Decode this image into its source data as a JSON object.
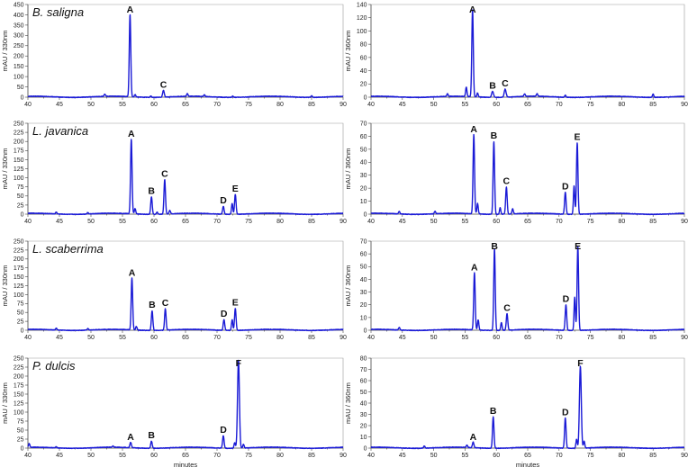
{
  "style": {
    "line_color": "#1a1ad6"
  },
  "chart_data": [
    {
      "type": "line",
      "title": "B. saligna",
      "xlabel": "",
      "ylabel": "mAU / 330nm",
      "xlim": [
        40,
        90
      ],
      "xticks": [
        40,
        45,
        50,
        55,
        60,
        65,
        70,
        75,
        80,
        85,
        90
      ],
      "ylim": [
        0,
        450
      ],
      "yticks": [
        0,
        50,
        100,
        150,
        200,
        250,
        300,
        350,
        400,
        450
      ],
      "peaks": [
        {
          "label": "A",
          "x": 56.2,
          "y": 400,
          "w": 0.2
        },
        {
          "label": "C",
          "x": 61.5,
          "y": 33,
          "w": 0.22
        }
      ],
      "minor_peaks": [
        {
          "x": 52.2,
          "y": 10
        },
        {
          "x": 57.0,
          "y": 12
        },
        {
          "x": 59.5,
          "y": 6
        },
        {
          "x": 65.3,
          "y": 13
        },
        {
          "x": 68.0,
          "y": 8
        },
        {
          "x": 72.5,
          "y": 6
        },
        {
          "x": 85.0,
          "y": 8
        }
      ]
    },
    {
      "type": "line",
      "title": "",
      "xlabel": "",
      "ylabel": "mAU / 360nm",
      "xlim": [
        40,
        90
      ],
      "xticks": [
        40,
        45,
        50,
        55,
        60,
        65,
        70,
        75,
        80,
        85,
        90
      ],
      "ylim": [
        0,
        140
      ],
      "yticks": [
        0,
        20,
        40,
        60,
        80,
        100,
        120,
        140
      ],
      "peaks": [
        {
          "label": "A",
          "x": 56.2,
          "y": 132,
          "w": 0.2
        },
        {
          "label": "B",
          "x": 59.4,
          "y": 9,
          "w": 0.25
        },
        {
          "label": "C",
          "x": 61.4,
          "y": 12,
          "w": 0.25
        }
      ],
      "minor_peaks": [
        {
          "x": 55.2,
          "y": 14
        },
        {
          "x": 57.0,
          "y": 6
        },
        {
          "x": 52.2,
          "y": 4
        },
        {
          "x": 64.5,
          "y": 4
        },
        {
          "x": 66.5,
          "y": 4
        },
        {
          "x": 71.0,
          "y": 3
        },
        {
          "x": 85.0,
          "y": 5
        }
      ]
    },
    {
      "type": "line",
      "title": "L. javanica",
      "xlabel": "",
      "ylabel": "mAU / 330nm",
      "xlim": [
        40,
        90
      ],
      "xticks": [
        40,
        45,
        50,
        55,
        60,
        65,
        70,
        75,
        80,
        85,
        90
      ],
      "ylim": [
        0,
        250
      ],
      "yticks": [
        0,
        25,
        50,
        75,
        100,
        125,
        150,
        175,
        200,
        225,
        250
      ],
      "peaks": [
        {
          "label": "A",
          "x": 56.4,
          "y": 205,
          "w": 0.2
        },
        {
          "label": "B",
          "x": 59.6,
          "y": 48,
          "w": 0.2
        },
        {
          "label": "C",
          "x": 61.7,
          "y": 95,
          "w": 0.2
        },
        {
          "label": "D",
          "x": 71.0,
          "y": 22,
          "w": 0.2
        },
        {
          "label": "E",
          "x": 72.9,
          "y": 55,
          "w": 0.2
        }
      ],
      "minor_peaks": [
        {
          "x": 72.4,
          "y": 30
        },
        {
          "x": 57.0,
          "y": 15
        },
        {
          "x": 60.5,
          "y": 6
        },
        {
          "x": 62.5,
          "y": 10
        },
        {
          "x": 44.5,
          "y": 5
        },
        {
          "x": 49.5,
          "y": 4
        }
      ]
    },
    {
      "type": "line",
      "title": "",
      "xlabel": "",
      "ylabel": "mAU / 360nm",
      "xlim": [
        40,
        90
      ],
      "xticks": [
        40,
        45,
        50,
        55,
        60,
        65,
        70,
        75,
        80,
        85,
        90
      ],
      "ylim": [
        0,
        70
      ],
      "yticks": [
        0,
        10,
        20,
        30,
        40,
        50,
        60,
        70
      ],
      "peaks": [
        {
          "label": "A",
          "x": 56.4,
          "y": 61,
          "w": 0.2
        },
        {
          "label": "B",
          "x": 59.6,
          "y": 56,
          "w": 0.2
        },
        {
          "label": "C",
          "x": 61.6,
          "y": 21,
          "w": 0.2
        },
        {
          "label": "D",
          "x": 71.0,
          "y": 17,
          "w": 0.2
        },
        {
          "label": "E",
          "x": 72.9,
          "y": 55,
          "w": 0.2
        }
      ],
      "minor_peaks": [
        {
          "x": 72.4,
          "y": 22
        },
        {
          "x": 57.0,
          "y": 8
        },
        {
          "x": 60.6,
          "y": 5
        },
        {
          "x": 62.6,
          "y": 4
        },
        {
          "x": 44.5,
          "y": 2
        },
        {
          "x": 50.2,
          "y": 2
        }
      ]
    },
    {
      "type": "line",
      "title": "L. scaberrima",
      "xlabel": "",
      "ylabel": "mAU / 330nm",
      "xlim": [
        40,
        90
      ],
      "xticks": [
        40,
        45,
        50,
        55,
        60,
        65,
        70,
        75,
        80,
        85,
        90
      ],
      "ylim": [
        0,
        250
      ],
      "yticks": [
        0,
        25,
        50,
        75,
        100,
        125,
        150,
        175,
        200,
        225,
        250
      ],
      "peaks": [
        {
          "label": "A",
          "x": 56.5,
          "y": 145,
          "w": 0.2
        },
        {
          "label": "B",
          "x": 59.7,
          "y": 55,
          "w": 0.2
        },
        {
          "label": "C",
          "x": 61.8,
          "y": 60,
          "w": 0.2
        },
        {
          "label": "D",
          "x": 71.1,
          "y": 30,
          "w": 0.2
        },
        {
          "label": "E",
          "x": 72.9,
          "y": 62,
          "w": 0.2
        }
      ],
      "minor_peaks": [
        {
          "x": 72.4,
          "y": 30
        },
        {
          "x": 57.2,
          "y": 10
        },
        {
          "x": 44.5,
          "y": 5
        },
        {
          "x": 49.5,
          "y": 4
        }
      ]
    },
    {
      "type": "line",
      "title": "",
      "xlabel": "",
      "ylabel": "mAU / 360nm",
      "xlim": [
        40,
        90
      ],
      "xticks": [
        40,
        45,
        50,
        55,
        60,
        65,
        70,
        75,
        80,
        85,
        90
      ],
      "ylim": [
        0,
        70
      ],
      "yticks": [
        0,
        10,
        20,
        30,
        40,
        50,
        60,
        70
      ],
      "peaks": [
        {
          "label": "A",
          "x": 56.5,
          "y": 45,
          "w": 0.2
        },
        {
          "label": "B",
          "x": 59.7,
          "y": 64,
          "w": 0.2
        },
        {
          "label": "C",
          "x": 61.7,
          "y": 13,
          "w": 0.2
        },
        {
          "label": "D",
          "x": 71.1,
          "y": 20,
          "w": 0.2
        },
        {
          "label": "E",
          "x": 73.0,
          "y": 66,
          "w": 0.2
        }
      ],
      "minor_peaks": [
        {
          "x": 72.5,
          "y": 26
        },
        {
          "x": 60.8,
          "y": 6
        },
        {
          "x": 57.1,
          "y": 8
        },
        {
          "x": 44.5,
          "y": 2
        }
      ]
    },
    {
      "type": "line",
      "title": "P. dulcis",
      "xlabel": "minutes",
      "ylabel": "mAU / 330nm",
      "xlim": [
        40,
        90
      ],
      "xticks": [
        40,
        45,
        50,
        55,
        60,
        65,
        70,
        75,
        80,
        85,
        90
      ],
      "ylim": [
        0,
        250
      ],
      "yticks": [
        0,
        25,
        50,
        75,
        100,
        125,
        150,
        175,
        200,
        225,
        250
      ],
      "peaks": [
        {
          "label": "A",
          "x": 56.3,
          "y": 15,
          "w": 0.2
        },
        {
          "label": "B",
          "x": 59.6,
          "y": 20,
          "w": 0.2
        },
        {
          "label": "D",
          "x": 71.0,
          "y": 35,
          "w": 0.2
        },
        {
          "label": "F",
          "x": 73.4,
          "y": 245,
          "w": 0.25
        }
      ],
      "minor_peaks": [
        {
          "x": 40.2,
          "y": 10
        },
        {
          "x": 72.8,
          "y": 15
        },
        {
          "x": 74.2,
          "y": 10
        },
        {
          "x": 53.5,
          "y": 3
        },
        {
          "x": 44.5,
          "y": 3
        }
      ]
    },
    {
      "type": "line",
      "title": "",
      "xlabel": "minutes",
      "ylabel": "mAU / 360nm",
      "xlim": [
        40,
        90
      ],
      "xticks": [
        40,
        45,
        50,
        55,
        60,
        65,
        70,
        75,
        80,
        85,
        90
      ],
      "ylim": [
        0,
        80
      ],
      "yticks": [
        0,
        10,
        20,
        30,
        40,
        50,
        60,
        70,
        80
      ],
      "peaks": [
        {
          "label": "A",
          "x": 56.3,
          "y": 5,
          "w": 0.2
        },
        {
          "label": "B",
          "x": 59.5,
          "y": 28,
          "w": 0.2
        },
        {
          "label": "D",
          "x": 71.0,
          "y": 27,
          "w": 0.2
        },
        {
          "label": "F",
          "x": 73.4,
          "y": 73,
          "w": 0.25
        }
      ],
      "minor_peaks": [
        {
          "x": 74.0,
          "y": 6
        },
        {
          "x": 72.8,
          "y": 8
        },
        {
          "x": 48.5,
          "y": 2
        },
        {
          "x": 55.3,
          "y": 2
        }
      ]
    }
  ]
}
